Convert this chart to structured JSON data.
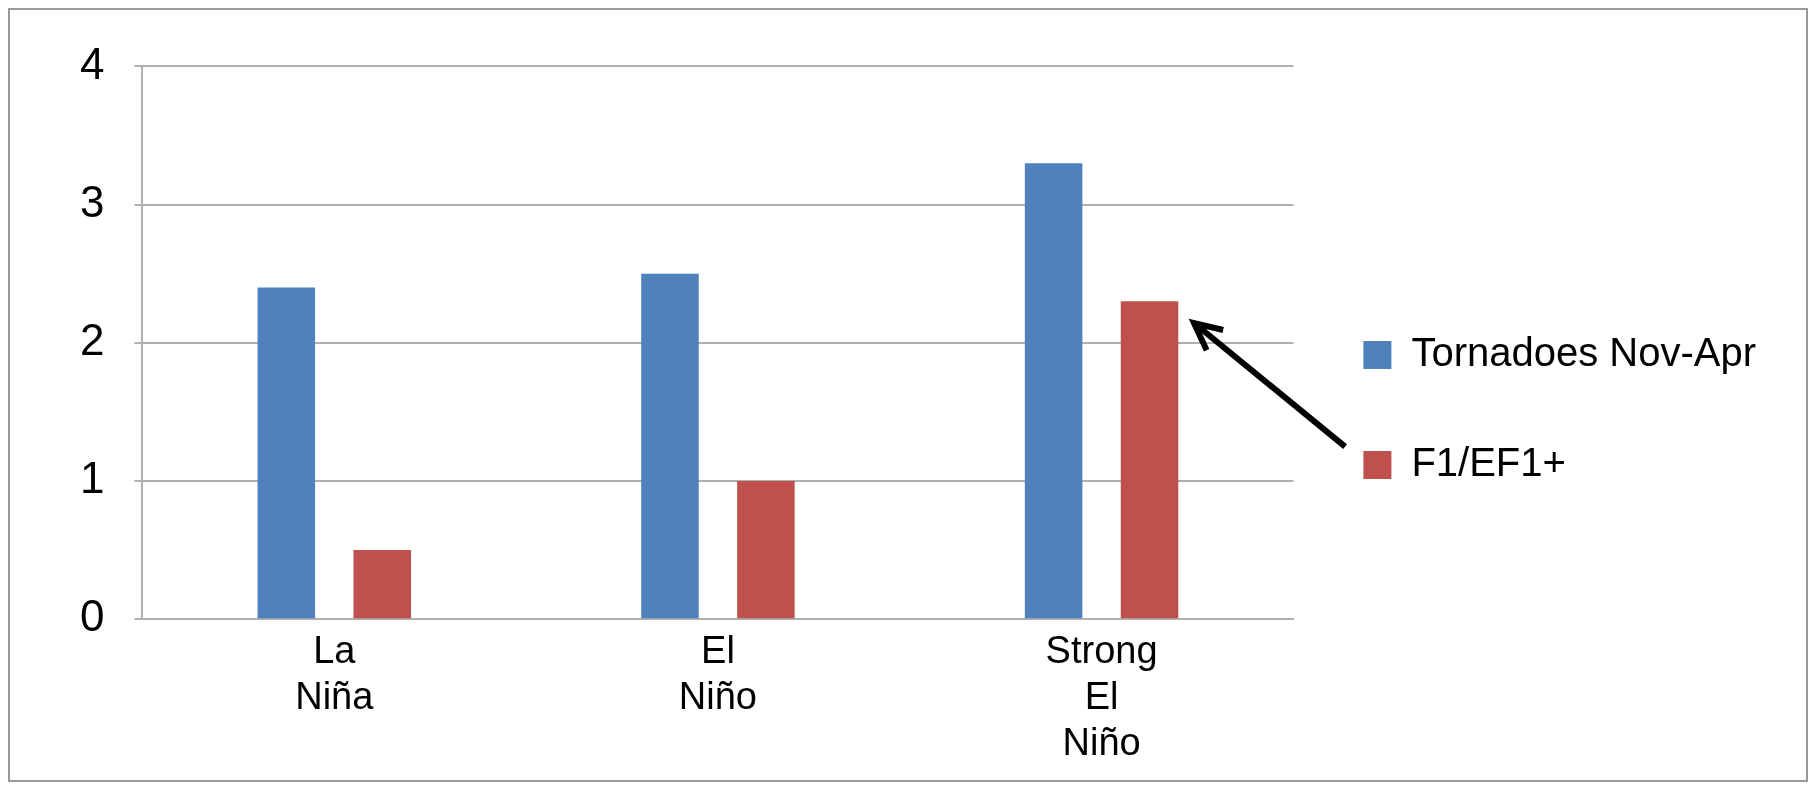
{
  "chart_data": {
    "type": "bar",
    "categories": [
      "La Niña",
      "El Niño",
      "Strong El Niño"
    ],
    "series": [
      {
        "name": "Tornadoes Nov-Apr",
        "color": "#4f81bd",
        "values": [
          2.4,
          2.5,
          3.3
        ]
      },
      {
        "name": "F1/EF1+",
        "color": "#c0504d",
        "values": [
          0.5,
          1.0,
          2.3
        ]
      }
    ],
    "ylim": [
      0,
      4
    ],
    "yticks": [
      0,
      1,
      2,
      3,
      4
    ],
    "grid": "y",
    "legend": "right"
  }
}
